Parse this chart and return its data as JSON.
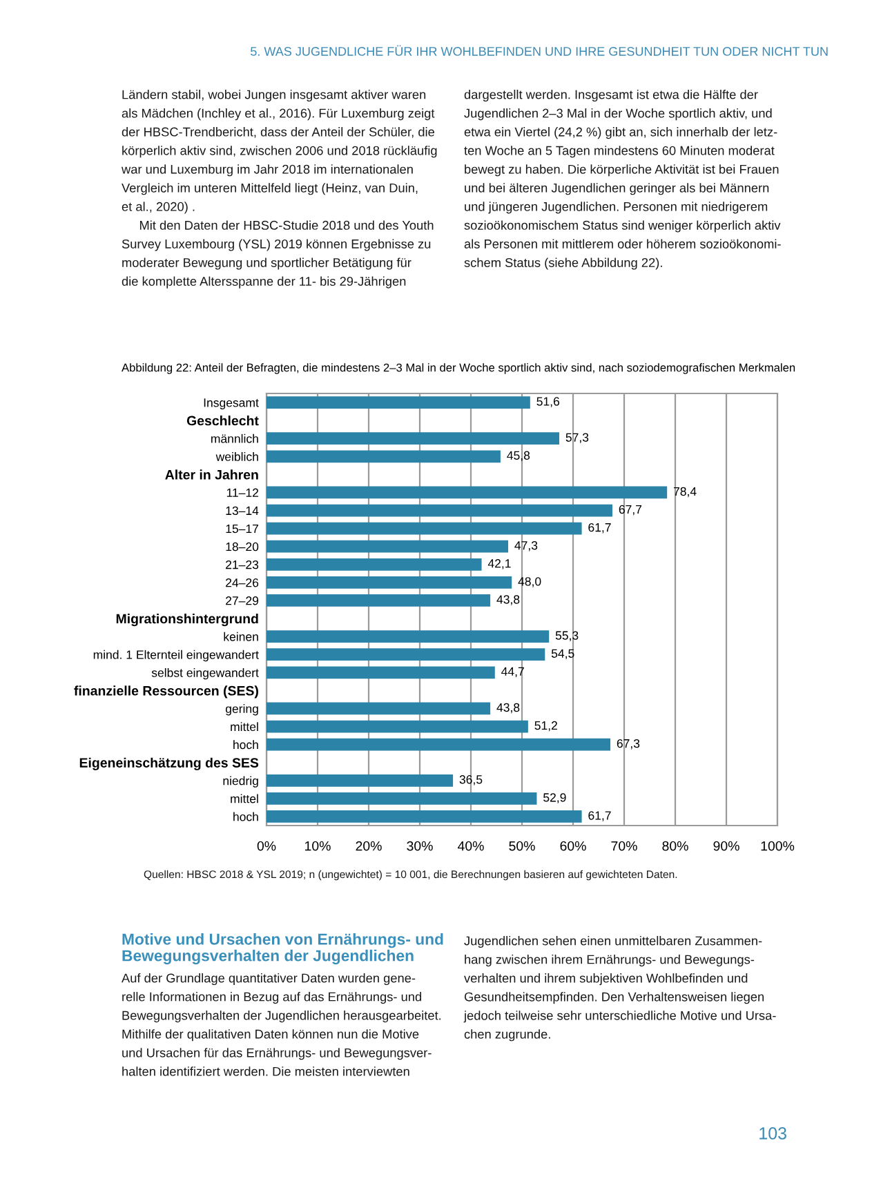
{
  "chart_data": {
    "type": "bar",
    "orientation": "horizontal",
    "title": "Abbildung 22: Anteil der Befragten, die mindestens 2–3 Mal in der Woche sportlich aktiv sind, nach soziodemografischen Merkmalen",
    "categories": [
      "Insgesamt",
      "Geschlecht",
      "männlich",
      "weiblich",
      "Alter in Jahren",
      "11–12",
      "13–14",
      "15–17",
      "18–20",
      "21–23",
      "24–26",
      "27–29",
      "Migrationshintergrund",
      "keinen",
      "mind. 1 Elternteil eingewandert",
      "selbst eingewandert",
      "finanzielle Ressourcen (SES)",
      "gering",
      "mittel",
      "hoch",
      "Eigeneinschätzung des SES",
      "niedrig",
      "mittel",
      "hoch"
    ],
    "values": [
      51.6,
      null,
      57.3,
      45.8,
      null,
      78.4,
      67.7,
      61.7,
      47.3,
      42.1,
      48.0,
      43.8,
      null,
      55.3,
      54.5,
      44.7,
      null,
      43.8,
      51.2,
      67.3,
      null,
      36.5,
      52.9,
      61.7
    ],
    "value_labels": [
      "51,6",
      null,
      "57,3",
      "45,8",
      null,
      "78,4",
      "67,7",
      "61,7",
      "47,3",
      "42,1",
      "48,0",
      "43,8",
      null,
      "55,3",
      "54,5",
      "44,7",
      null,
      "43,8",
      "51,2",
      "67,3",
      null,
      "36,5",
      "52,9",
      "61,7"
    ],
    "color": "#2b84a8",
    "xlim": [
      0,
      100
    ],
    "xticks": [
      {
        "value": 0,
        "label": "0%"
      },
      {
        "value": 10,
        "label": "10%"
      },
      {
        "value": 20,
        "label": "20%"
      },
      {
        "value": 30,
        "label": "30%"
      },
      {
        "value": 40,
        "label": "40%"
      },
      {
        "value": 50,
        "label": "50%"
      },
      {
        "value": 60,
        "label": "60%"
      },
      {
        "value": 70,
        "label": "70%"
      },
      {
        "value": 80,
        "label": "80%"
      },
      {
        "value": 90,
        "label": "90%"
      },
      {
        "value": 100,
        "label": "100%"
      }
    ],
    "grid": "x",
    "legend": false,
    "annotations": [
      "5. WAS JUGENDLICHE FÜR IHR WOHLBEFINDEN UND IHRE GESUNDHEIT TUN ODER NICHT TUN",
      "Ländern stabil, wobei Jungen insgesamt aktiver waren\nals Mädchen (Inchley et al., 2016). Für Luxemburg zeigt\nder HBSC-Trendbericht, dass der Anteil der Schüler, die\nkörperlich aktiv sind, zwischen 2006 und 2018 rückläufig\nwar und Luxemburg im Jahr 2018 im internationalen\nVergleich im unteren Mittelfeld liegt (Heinz, van Duin,\net al., 2020) .\n     Mit den Daten der HBSC-Studie 2018 und des Youth\nSurvey Luxembourg (YSL) 2019 können Ergebnisse zu\nmoderater Bewegung und sportlicher Betätigung für\ndie komplette Altersspanne der 11- bis 29-Jährigen",
      "dargestellt werden. Insgesamt ist etwa die Hälfte der\nJugendlichen 2–3 Mal in der Woche sportlich aktiv, und\netwa ein Viertel (24,2 %) gibt an, sich innerhalb der letz-\nten Woche an 5 Tagen mindestens 60 Minuten moderat\nbewegt zu haben. Die körperliche Aktivität ist bei Frauen\nund bei älteren Jugendlichen geringer als bei Männern\nund jüngeren Jugendlichen. Personen mit niedrigerem\nsozioökonomischem Status sind weniger körperlich aktiv\nals Personen mit mittlerem oder höherem sozioökonomi-\nschem Status (siehe Abbildung 22).",
      "Quellen: HBSC 2018 & YSL 2019; n (ungewichtet) = 10 001, die Berechnungen basieren auf gewichteten Daten.",
      "Motive und Ursachen von Ernährungs- und\nBewegungsverhalten der Jugendlichen",
      "Auf der Grundlage quantitativer Daten wurden gene-\nrelle Informationen in Bezug auf das Ernährungs- und\nBewegungsverhalten der Jugendlichen herausgearbeitet.\nMithilfe der qualitativen Daten können nun die Motive\nund Ursachen für das Ernährungs- und Bewegungsver-\nhalten identifiziert werden. Die meisten interviewten",
      "Jugendlichen sehen einen unmittelbaren Zusammen-\nhang zwischen ihrem Ernährungs- und Bewegungs-\nverhalten und ihrem subjektiven Wohlbefinden und\nGesundheitsempfinden. Den Verhaltensweisen liegen\njedoch teilweise sehr unterschiedliche Motive und Ursa-\nchen zugrunde.",
      "103"
    ]
  }
}
